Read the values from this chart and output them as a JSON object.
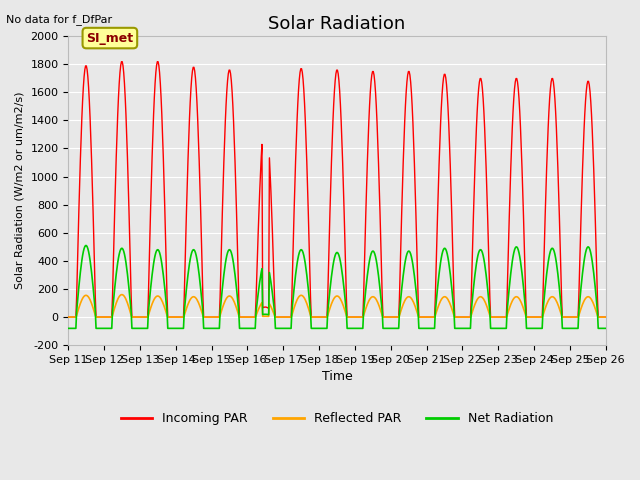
{
  "title": "Solar Radiation",
  "subtitle": "No data for f_DfPar",
  "xlabel": "Time",
  "ylabel": "Solar Radiation (W/m2 or um/m2/s)",
  "ylim": [
    -200,
    2000
  ],
  "yticks": [
    -200,
    0,
    200,
    400,
    600,
    800,
    1000,
    1200,
    1400,
    1600,
    1800,
    2000
  ],
  "xtick_labels": [
    "Sep 11",
    "Sep 12",
    "Sep 13",
    "Sep 14",
    "Sep 15",
    "Sep 16",
    "Sep 17",
    "Sep 18",
    "Sep 19",
    "Sep 20",
    "Sep 21",
    "Sep 22",
    "Sep 23",
    "Sep 24",
    "Sep 25",
    "Sep 26"
  ],
  "n_days": 15,
  "legend_label_si": "SI_met",
  "legend_labels": [
    "Incoming PAR",
    "Reflected PAR",
    "Net Radiation"
  ],
  "colors": {
    "incoming": "#ff0000",
    "reflected": "#ffa500",
    "net": "#00cc00"
  },
  "plot_bg_color": "#e8e8e8",
  "grid_color": "#ffffff",
  "si_box_color": "#ffff99",
  "si_box_border": "#999900",
  "incoming_peaks": [
    1790,
    1820,
    1820,
    1780,
    1760,
    1430,
    1770,
    1760,
    1750,
    1750,
    1730,
    1700,
    1700,
    1700,
    1680
  ],
  "reflected_peaks": [
    155,
    160,
    150,
    145,
    150,
    120,
    155,
    150,
    145,
    145,
    145,
    145,
    145,
    145,
    145
  ],
  "net_peaks": [
    510,
    490,
    480,
    480,
    480,
    400,
    480,
    460,
    470,
    470,
    490,
    480,
    500,
    490,
    500
  ],
  "net_night_min": -80
}
